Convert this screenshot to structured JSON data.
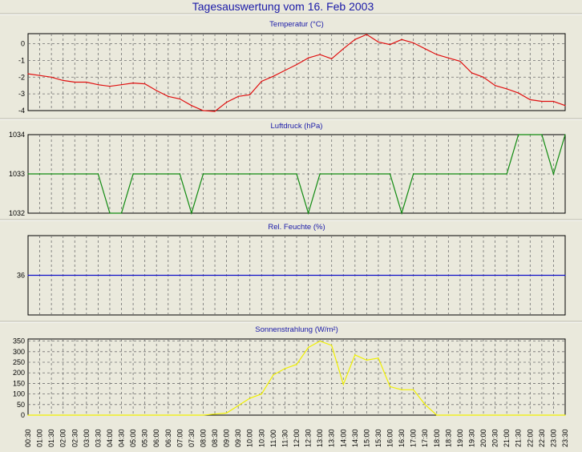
{
  "window": {
    "title": "Tagesauswertung vom 16. Feb 2003"
  },
  "colors": {
    "background": "#eae9dc",
    "plot": "#eae9dc",
    "title": "#1a1aa8",
    "temperature": "#e01010",
    "pressure": "#108a10",
    "humidity": "#1010c8",
    "solar": "#f0f000"
  },
  "chart_data": [
    {
      "type": "line",
      "title": "Temperatur (°C)",
      "ylim": [
        -4,
        0.6
      ],
      "yticks": [
        0,
        -1,
        -2,
        -3,
        -4
      ],
      "grid": true,
      "x": [
        "00:30",
        "01:00",
        "01:30",
        "02:00",
        "02:30",
        "03:00",
        "03:30",
        "04:00",
        "04:30",
        "05:00",
        "05:30",
        "06:00",
        "06:30",
        "07:00",
        "07:30",
        "08:00",
        "08:30",
        "09:00",
        "09:30",
        "10:00",
        "10:30",
        "11:00",
        "11:30",
        "12:00",
        "12:30",
        "13:00",
        "13:30",
        "14:00",
        "14:30",
        "15:00",
        "15:30",
        "16:00",
        "16:30",
        "17:00",
        "17:30",
        "18:00",
        "18:30",
        "19:00",
        "19:30",
        "20:00",
        "20:30",
        "21:00",
        "21:30",
        "22:00",
        "22:30",
        "23:00",
        "23:30"
      ],
      "series": [
        {
          "color": "#e01010",
          "values": [
            -1.8,
            -1.9,
            -2.0,
            -2.2,
            -2.3,
            -2.3,
            -2.45,
            -2.55,
            -2.45,
            -2.35,
            -2.4,
            -2.8,
            -3.15,
            -3.3,
            -3.7,
            -4.0,
            -4.05,
            -3.5,
            -3.15,
            -3.05,
            -2.25,
            -1.95,
            -1.6,
            -1.25,
            -0.85,
            -0.65,
            -0.9,
            -0.3,
            0.25,
            0.55,
            0.1,
            -0.05,
            0.25,
            0.05,
            -0.3,
            -0.65,
            -0.85,
            -1.05,
            -1.75,
            -2.0,
            -2.5,
            -2.7,
            -2.95,
            -3.35,
            -3.45,
            -3.45,
            -3.7
          ]
        }
      ]
    },
    {
      "type": "line",
      "title": "Luftdruck (hPa)",
      "ylim": [
        1032,
        1034
      ],
      "yticks": [
        1034,
        1033,
        1032
      ],
      "grid": true,
      "x_ref": "same as chart 1",
      "series": [
        {
          "color": "#108a10",
          "values": [
            1033,
            1033,
            1033,
            1033,
            1033,
            1033,
            1033,
            1032,
            1032,
            1033,
            1033,
            1033,
            1033,
            1033,
            1032,
            1033,
            1033,
            1033,
            1033,
            1033,
            1033,
            1033,
            1033,
            1033,
            1032,
            1033,
            1033,
            1033,
            1033,
            1033,
            1033,
            1033,
            1032,
            1033,
            1033,
            1033,
            1033,
            1033,
            1033,
            1033,
            1033,
            1033,
            1034,
            1034,
            1034,
            1033,
            1034
          ]
        }
      ]
    },
    {
      "type": "line",
      "title": "Rel. Feuchte (%)",
      "ylim": [
        35,
        37
      ],
      "yticks": [
        36
      ],
      "grid": true,
      "x_ref": "same as chart 1",
      "series": [
        {
          "color": "#1010c8",
          "values": [
            36,
            36,
            36,
            36,
            36,
            36,
            36,
            36,
            36,
            36,
            36,
            36,
            36,
            36,
            36,
            36,
            36,
            36,
            36,
            36,
            36,
            36,
            36,
            36,
            36,
            36,
            36,
            36,
            36,
            36,
            36,
            36,
            36,
            36,
            36,
            36,
            36,
            36,
            36,
            36,
            36,
            36,
            36,
            36,
            36,
            36,
            36
          ]
        }
      ]
    },
    {
      "type": "line",
      "title": "Sonnenstrahlung (W/m²)",
      "ylim": [
        0,
        360
      ],
      "yticks": [
        350,
        300,
        250,
        200,
        150,
        100,
        50,
        0
      ],
      "grid": true,
      "x_ref": "same as chart 1",
      "series": [
        {
          "color": "#f0f000",
          "values": [
            0,
            0,
            0,
            0,
            0,
            0,
            0,
            0,
            0,
            0,
            0,
            0,
            0,
            0,
            0,
            0,
            5,
            10,
            45,
            80,
            100,
            190,
            220,
            240,
            320,
            350,
            330,
            145,
            285,
            260,
            270,
            135,
            120,
            120,
            50,
            0,
            0,
            0,
            0,
            0,
            0,
            0,
            0,
            0,
            0,
            0,
            0
          ]
        }
      ]
    }
  ]
}
